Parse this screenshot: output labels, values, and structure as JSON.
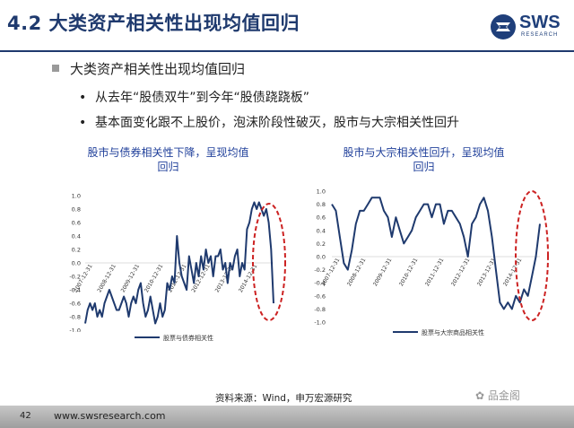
{
  "header": {
    "title": "4.2 大类资产相关性出现均值回归",
    "logo_text": "SWS",
    "logo_sub": "RESEARCH"
  },
  "bullets": {
    "main": "大类资产相关性出现均值回归",
    "sub": [
      "从去年“股债双牛”到今年“股债跷跷板”",
      "基本面变化跟不上股价，泡沫阶段性破灭，股市与大宗相关性回升"
    ]
  },
  "chart_data": [
    {
      "type": "line",
      "title": "股市与债券相关性下降，呈现均值回归",
      "yticks": [
        "1.0",
        "0.8",
        "0.6",
        "0.4",
        "0.2",
        "0.0",
        "-0.2",
        "-0.4",
        "-0.6",
        "-0.8",
        "-1.0"
      ],
      "ylim": [
        -1.0,
        1.0
      ],
      "date_ticks": [
        "2007-12-31",
        "2008-12-31",
        "2009-12-31",
        "2010-12-31",
        "2011-12-31",
        "2012-12-31",
        "2013-12-31",
        "2014-12-31"
      ],
      "series": [
        {
          "name": "股票与债券相关性",
          "color": "#1f3a6e",
          "x": [
            0,
            0.1,
            0.2,
            0.3,
            0.4,
            0.5,
            0.6,
            0.7,
            0.8,
            0.9,
            1.0,
            1.1,
            1.2,
            1.3,
            1.4,
            1.5,
            1.6,
            1.7,
            1.8,
            1.9,
            2.0,
            2.1,
            2.2,
            2.3,
            2.4,
            2.5,
            2.6,
            2.7,
            2.8,
            2.9,
            3.0,
            3.1,
            3.2,
            3.3,
            3.4,
            3.5,
            3.6,
            3.7,
            3.8,
            3.9,
            4.0,
            4.1,
            4.2,
            4.3,
            4.4,
            4.5,
            4.6,
            4.7,
            4.8,
            4.9,
            5.0,
            5.1,
            5.2,
            5.3,
            5.4,
            5.5,
            5.6,
            5.7,
            5.8,
            5.9,
            6.0,
            6.1,
            6.2,
            6.3,
            6.4,
            6.5,
            6.6,
            6.7,
            6.8,
            6.9,
            7.0,
            7.1,
            7.2,
            7.3,
            7.4,
            7.5,
            7.6,
            7.7,
            7.8
          ],
          "values": [
            -0.9,
            -0.7,
            -0.6,
            -0.7,
            -0.6,
            -0.8,
            -0.7,
            -0.8,
            -0.6,
            -0.5,
            -0.4,
            -0.5,
            -0.6,
            -0.7,
            -0.7,
            -0.6,
            -0.5,
            -0.6,
            -0.8,
            -0.6,
            -0.5,
            -0.6,
            -0.4,
            -0.3,
            -0.6,
            -0.8,
            -0.7,
            -0.5,
            -0.7,
            -0.9,
            -0.8,
            -0.6,
            -0.8,
            -0.7,
            -0.3,
            -0.4,
            -0.2,
            -0.3,
            0.4,
            0.0,
            -0.2,
            -0.3,
            -0.4,
            0.1,
            -0.1,
            -0.3,
            0.0,
            -0.2,
            0.1,
            -0.1,
            0.2,
            0.0,
            0.1,
            -0.2,
            0.1,
            0.1,
            0.2,
            -0.1,
            0.0,
            -0.3,
            0.0,
            -0.1,
            0.1,
            0.2,
            -0.2,
            0.0,
            -0.1,
            0.5,
            0.6,
            0.8,
            0.9,
            0.8,
            0.9,
            0.8,
            0.7,
            0.8,
            0.6,
            0.2,
            -0.6
          ]
        }
      ]
    },
    {
      "type": "line",
      "title": "股市与大宗相关性回升，呈现均值回归",
      "yticks": [
        "1.0",
        "0.8",
        "0.6",
        "0.4",
        "0.2",
        "0.0",
        "-0.2",
        "-0.4",
        "-0.6",
        "-0.8",
        "-1.0"
      ],
      "ylim": [
        -1.0,
        1.0
      ],
      "date_ticks": [
        "2007-12-31",
        "2008-12-31",
        "2009-12-31",
        "2010-12-31",
        "2011-12-31",
        "2012-12-31",
        "2013-12-31",
        "2014-12-31"
      ],
      "series": [
        {
          "name": "股票与大宗商品相关性",
          "color": "#1f3a6e",
          "x": [
            0,
            0.15,
            0.3,
            0.45,
            0.6,
            0.75,
            0.9,
            1.05,
            1.2,
            1.35,
            1.5,
            1.65,
            1.8,
            1.95,
            2.1,
            2.25,
            2.4,
            2.55,
            2.7,
            2.85,
            3.0,
            3.15,
            3.3,
            3.45,
            3.6,
            3.75,
            3.9,
            4.05,
            4.2,
            4.35,
            4.5,
            4.65,
            4.8,
            4.95,
            5.1,
            5.25,
            5.4,
            5.55,
            5.7,
            5.85,
            6.0,
            6.15,
            6.3,
            6.45,
            6.6,
            6.75,
            6.9,
            7.05,
            7.2,
            7.35,
            7.5,
            7.65,
            7.8
          ],
          "values": [
            0.8,
            0.7,
            0.3,
            -0.1,
            -0.2,
            0.1,
            0.5,
            0.7,
            0.7,
            0.8,
            0.9,
            0.9,
            0.9,
            0.7,
            0.6,
            0.3,
            0.6,
            0.4,
            0.2,
            0.3,
            0.4,
            0.6,
            0.7,
            0.8,
            0.8,
            0.6,
            0.8,
            0.8,
            0.5,
            0.7,
            0.7,
            0.6,
            0.5,
            0.3,
            0.0,
            0.5,
            0.6,
            0.8,
            0.9,
            0.7,
            0.3,
            -0.2,
            -0.7,
            -0.8,
            -0.7,
            -0.8,
            -0.6,
            -0.7,
            -0.5,
            -0.6,
            -0.3,
            0.0,
            0.5
          ]
        }
      ]
    }
  ],
  "source": "资料来源：Wind，申万宏源研究",
  "footer": {
    "page": "42",
    "url": "www.swsresearch.com"
  },
  "watermark": "品金阁",
  "colors": {
    "primary": "#1f3a6e",
    "highlight": "#cc2222",
    "chart_title": "#1f3f9a"
  }
}
